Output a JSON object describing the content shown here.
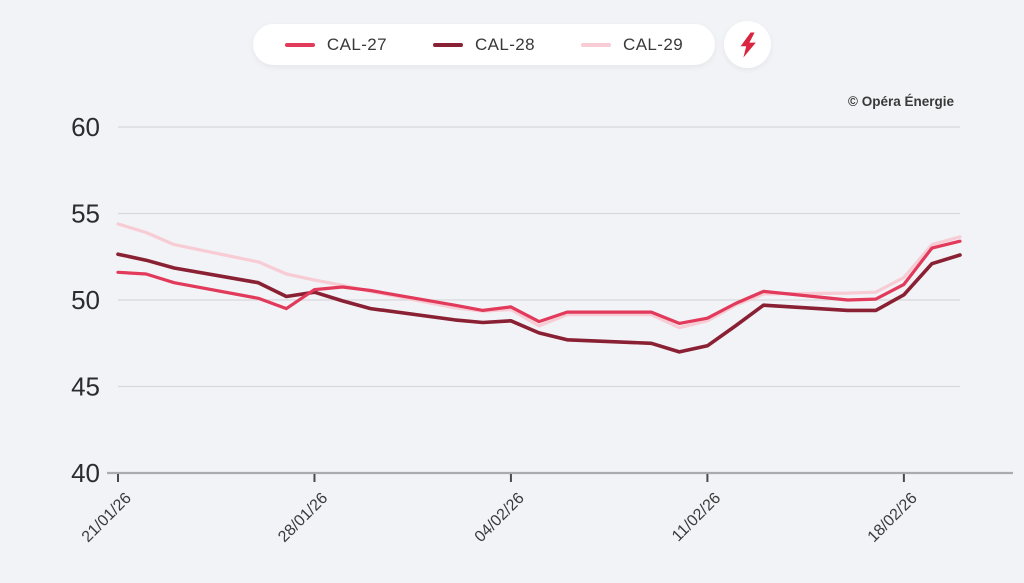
{
  "legend": {
    "items": [
      {
        "label": "CAL-27",
        "color": "#e13a5b"
      },
      {
        "label": "CAL-28",
        "color": "#8a2033"
      },
      {
        "label": "CAL-29",
        "color": "#f7ccd4"
      }
    ],
    "bolt_color": "#d9253f"
  },
  "watermark": "© Opéra Énergie",
  "chart_data": {
    "type": "line",
    "title": "",
    "xlabel": "",
    "ylabel": "",
    "ylim": [
      40,
      60
    ],
    "y_ticks": [
      60,
      55,
      50,
      45,
      40
    ],
    "grid": "horizontal",
    "legend_position": "top-center",
    "x_tick_labels": [
      "21/01/26",
      "28/01/26",
      "04/02/26",
      "11/02/26",
      "18/02/26"
    ],
    "x_tick_day_offsets": [
      0,
      7,
      14,
      21,
      28
    ],
    "x_dates": [
      "21/01/26",
      "22/01/26",
      "23/01/26",
      "26/01/26",
      "27/01/26",
      "28/01/26",
      "29/01/26",
      "30/01/26",
      "02/02/26",
      "03/02/26",
      "04/02/26",
      "05/02/26",
      "06/02/26",
      "09/02/26",
      "10/02/26",
      "11/02/26",
      "12/02/26",
      "13/02/26",
      "16/02/26",
      "17/02/26",
      "18/02/26",
      "19/02/26",
      "20/02/26"
    ],
    "x_day_offsets": [
      0,
      1,
      2,
      5,
      6,
      7,
      8,
      9,
      12,
      13,
      14,
      15,
      16,
      19,
      20,
      21,
      22,
      23,
      26,
      27,
      28,
      29,
      30
    ],
    "series": [
      {
        "name": "CAL-29",
        "color": "#f7ccd4",
        "width": 3.2,
        "values": [
          54.4,
          53.9,
          53.2,
          52.2,
          51.5,
          51.15,
          50.85,
          50.5,
          49.55,
          49.35,
          49.45,
          48.5,
          49.15,
          49.15,
          48.4,
          48.8,
          49.7,
          50.35,
          50.4,
          50.45,
          51.3,
          53.2,
          53.65
        ]
      },
      {
        "name": "CAL-28",
        "color": "#8a2033",
        "width": 3.6,
        "values": [
          52.65,
          52.3,
          51.85,
          51.0,
          50.2,
          50.45,
          49.95,
          49.5,
          48.85,
          48.7,
          48.8,
          48.1,
          47.7,
          47.5,
          47.0,
          47.35,
          48.5,
          49.7,
          49.4,
          49.4,
          50.3,
          52.1,
          52.6
        ]
      },
      {
        "name": "CAL-27",
        "color": "#e13a5b",
        "width": 3.2,
        "values": [
          51.6,
          51.5,
          51.0,
          50.1,
          49.5,
          50.6,
          50.75,
          50.55,
          49.7,
          49.4,
          49.6,
          48.75,
          49.3,
          49.3,
          48.65,
          48.95,
          49.8,
          50.5,
          50.0,
          50.05,
          50.9,
          53.0,
          53.4
        ]
      }
    ],
    "colors": {
      "background": "#f2f3f6",
      "gridline": "#d8d8dc",
      "baseline": "#ababaf",
      "tick": "#4a4a4a"
    }
  }
}
